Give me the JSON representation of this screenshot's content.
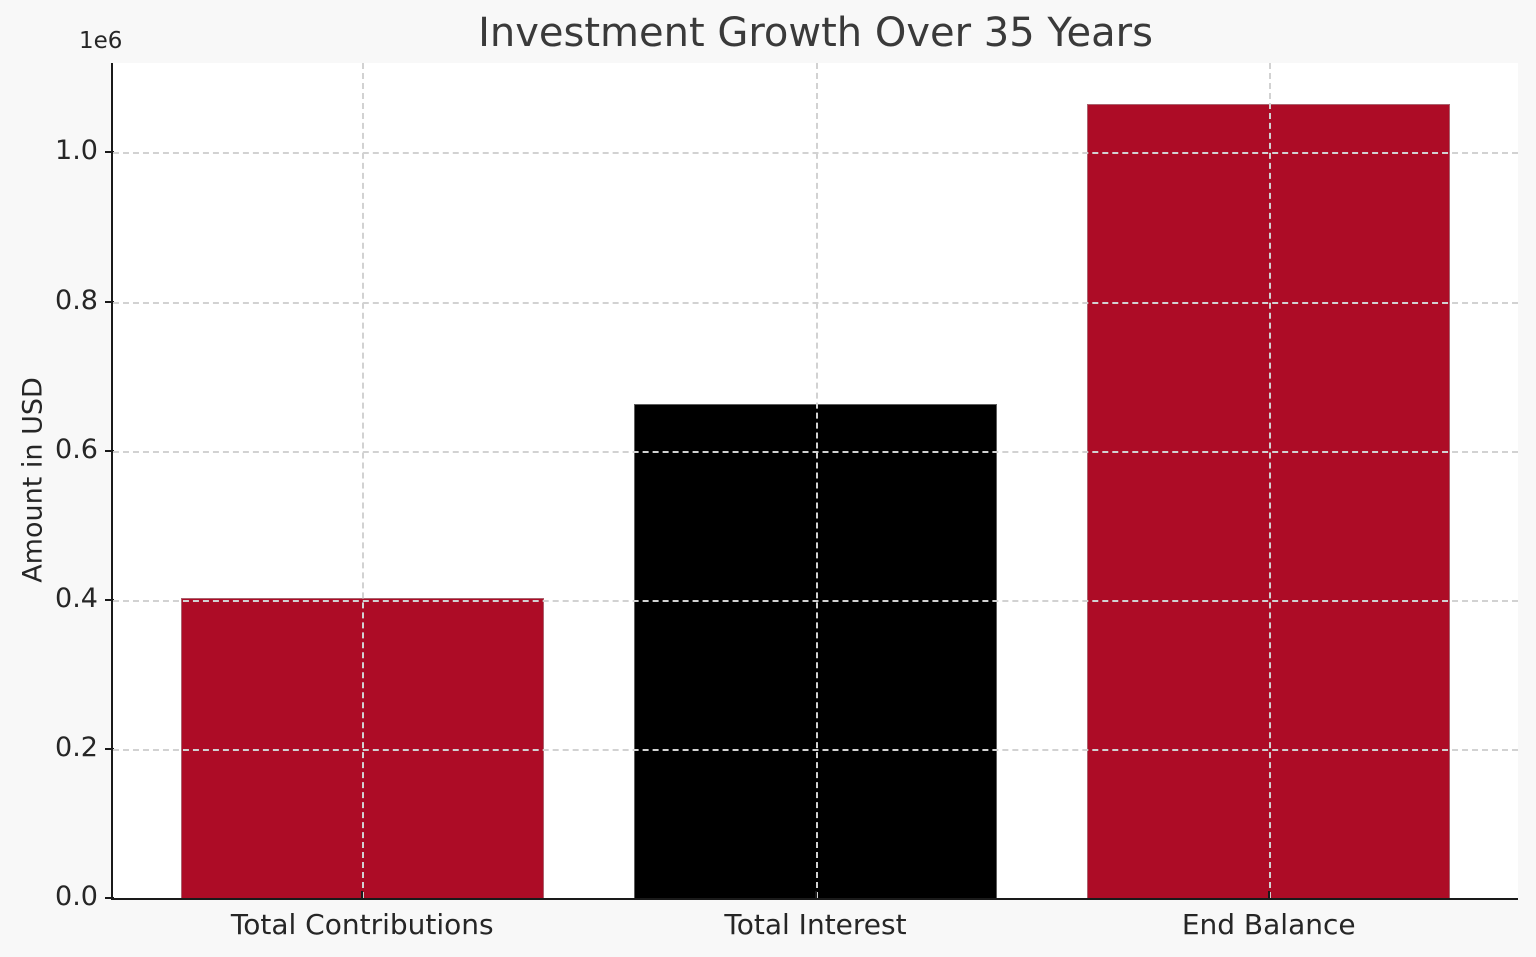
{
  "figure": {
    "background_color": "#f8f8f8",
    "plot_background_color": "#ffffff"
  },
  "chart_data": {
    "type": "bar",
    "title": "Investment Growth Over 35 Years",
    "xlabel": "",
    "ylabel": "Amount in USD",
    "offset_text": "1e6",
    "categories": [
      "Total Contributions",
      "Total Interest",
      "End Balance"
    ],
    "values": [
      403000,
      662000,
      1065000
    ],
    "bar_colors": [
      "#ad0c26",
      "#000000",
      "#ad0c26"
    ],
    "ylim": [
      0,
      1120000
    ],
    "yticks": [
      0,
      200000,
      400000,
      600000,
      800000,
      1000000
    ],
    "ytick_labels": [
      "0.0",
      "0.2",
      "0.4",
      "0.6",
      "0.8",
      "1.0"
    ],
    "grid": "dashed gray, both axes, drawn over bars",
    "legend": "none",
    "colors": {
      "grid": "#d2d2d2",
      "spine": "#1a1a1a",
      "tick_text": "#262626",
      "title_text": "#3a3a3a"
    }
  }
}
